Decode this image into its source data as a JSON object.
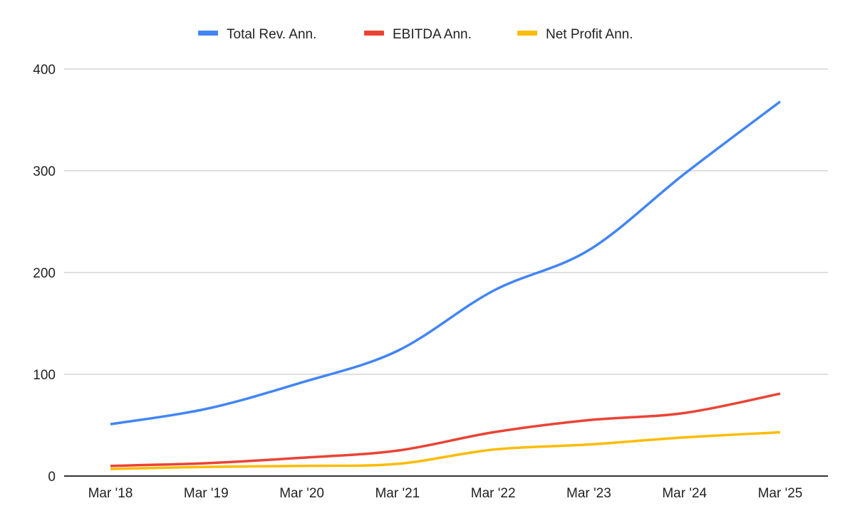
{
  "chart_data": {
    "type": "line",
    "title": "",
    "xlabel": "",
    "ylabel": "",
    "categories": [
      "Mar '18",
      "Mar '19",
      "Mar '20",
      "Mar '21",
      "Mar '22",
      "Mar '23",
      "Mar '24",
      "Mar '25"
    ],
    "ylim": [
      0,
      400
    ],
    "yticks": [
      "0",
      "100",
      "200",
      "300",
      "400"
    ],
    "grid": true,
    "legend_position": "top",
    "smooth": true,
    "series": [
      {
        "name": "Total Rev. Ann.",
        "color": "#4285f4",
        "values": [
          51,
          66,
          92,
          123,
          182,
          222,
          297,
          368
        ]
      },
      {
        "name": "EBITDA Ann.",
        "color": "#ea4335",
        "values": [
          10,
          12.6,
          18,
          25,
          43,
          55,
          62,
          81
        ]
      },
      {
        "name": "Net Profit Ann.",
        "color": "#fbbc04",
        "values": [
          7,
          9,
          10,
          12,
          26,
          31,
          38,
          43
        ]
      }
    ]
  }
}
